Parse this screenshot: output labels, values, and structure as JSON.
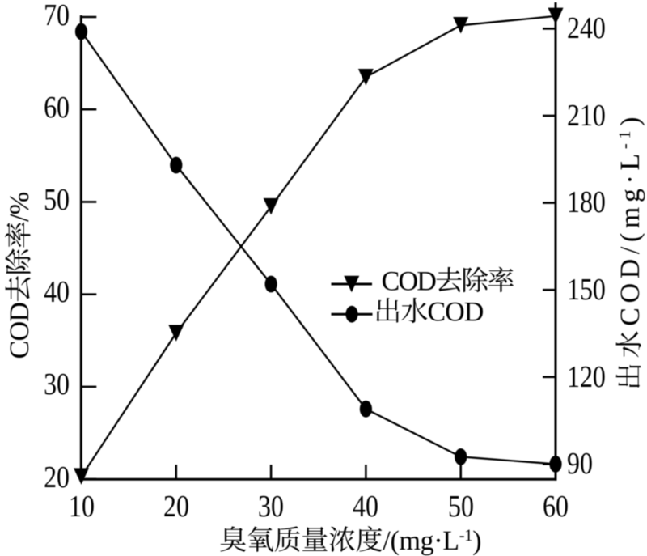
{
  "figure": {
    "background_color": "#ffffff",
    "ink_color": "#000000"
  },
  "chart_data": {
    "type": "line",
    "xlabel": "臭氧质量浓度/(mg·L⁻¹)",
    "ylabel_left": "COD去除率/%",
    "ylabel_right": "出水COD/(mg·L⁻¹)",
    "x": [
      10,
      20,
      30,
      40,
      50,
      60
    ],
    "x_tick_labels": [
      "10",
      "20",
      "30",
      "40",
      "50",
      "60"
    ],
    "y_left_tick_labels": [
      "20",
      "30",
      "40",
      "50",
      "60",
      "70"
    ],
    "y_left_tick_values": [
      20,
      30,
      40,
      50,
      60,
      70
    ],
    "y_right_tick_labels": [
      "90",
      "120",
      "150",
      "180",
      "210",
      "240"
    ],
    "y_right_tick_values": [
      90,
      120,
      150,
      180,
      210,
      240
    ],
    "xlim": [
      10,
      60
    ],
    "ylim_left": [
      20,
      70
    ],
    "ylim_right": [
      90,
      240
    ],
    "grid": false,
    "legend_position": "middle-right",
    "series": [
      {
        "name": "COD去除率",
        "axis": "left",
        "marker": "triangle-down",
        "values": [
          20.3,
          35.8,
          49.5,
          63.5,
          69.1,
          70.1
        ]
      },
      {
        "name": "出水COD",
        "axis": "right",
        "marker": "filled-ellipse",
        "values": [
          239,
          193,
          152,
          109,
          92.5,
          90
        ]
      }
    ],
    "legend": [
      {
        "label": "COD去除率",
        "marker": "triangle-down"
      },
      {
        "label": "出水COD",
        "marker": "filled-ellipse"
      }
    ]
  }
}
